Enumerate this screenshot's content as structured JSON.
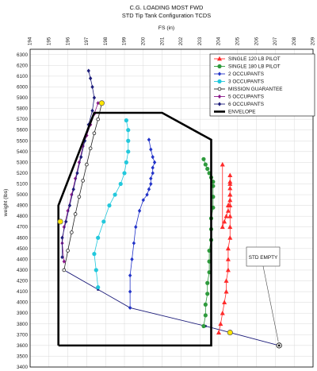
{
  "chart_data": {
    "type": "line",
    "title": "C.G. LOADING MOST FWD",
    "subtitle": "STD Tip Tank Configuration TCDS",
    "xlabel": "FS (in)",
    "ylabel": "weight (lbs)",
    "xlim": [
      194,
      209
    ],
    "ylim": [
      3400,
      6350
    ],
    "x_ticks": [
      194,
      195,
      196,
      197,
      198,
      199,
      200,
      201,
      202,
      203,
      204,
      205,
      206,
      207,
      208,
      209
    ],
    "y_ticks": [
      3400,
      3500,
      3600,
      3700,
      3800,
      3900,
      4000,
      4100,
      4200,
      4300,
      4400,
      4500,
      4600,
      4700,
      4800,
      4900,
      5000,
      5100,
      5200,
      5300,
      5400,
      5500,
      5600,
      5700,
      5800,
      5900,
      6000,
      6100,
      6200,
      6300
    ],
    "x_axis_position": "top",
    "grid": true,
    "legend_position": "top-right",
    "series": [
      {
        "name": "SINGLE 120 LB PILOT",
        "color": "#ff2a2a",
        "marker": "triangle",
        "x": [
          204.0,
          204.1,
          204.2,
          204.3,
          204.4,
          204.4,
          204.5,
          204.5,
          204.5,
          204.6,
          204.6,
          204.6,
          204.6,
          204.6,
          204.6,
          204.6,
          204.6,
          204.6,
          204.6,
          204.6,
          204.5,
          204.5,
          204.4,
          204.3,
          204.2,
          204.2
        ],
        "y": [
          3720,
          3800,
          3900,
          4000,
          4100,
          4200,
          4300,
          4400,
          4500,
          4600,
          4700,
          4800,
          4900,
          5000,
          5100,
          5180,
          5120,
          5060,
          5000,
          4950,
          4900,
          4850,
          4800,
          4750,
          4700,
          5280
        ]
      },
      {
        "name": "SINGLE 180 LB PILOT",
        "color": "#2e9a3c",
        "marker": "circle",
        "x": [
          203.2,
          203.3,
          203.3,
          203.4,
          203.4,
          203.5,
          203.5,
          203.5,
          203.6,
          203.6,
          203.6,
          203.7,
          203.7,
          203.7,
          203.7,
          203.6,
          203.5,
          203.4,
          203.3,
          203.2
        ],
        "y": [
          3780,
          3880,
          3980,
          4080,
          4180,
          4280,
          4380,
          4480,
          4580,
          4680,
          4780,
          4880,
          4980,
          5080,
          5120,
          5160,
          5200,
          5240,
          5280,
          5330
        ]
      },
      {
        "name": "2 OCCUPANTS",
        "color": "#2233c8",
        "marker": "diamond",
        "x": [
          199.3,
          199.3,
          199.3,
          199.4,
          199.5,
          199.6,
          199.8,
          200.0,
          200.2,
          200.3,
          200.4,
          200.4,
          200.5,
          200.5,
          200.6,
          200.5,
          200.4,
          200.3
        ],
        "y": [
          3950,
          4100,
          4250,
          4400,
          4550,
          4700,
          4850,
          4950,
          5000,
          5050,
          5100,
          5150,
          5200,
          5250,
          5300,
          5350,
          5420,
          5510
        ]
      },
      {
        "name": "3 OCCUPANTS",
        "color": "#22c8dc",
        "marker": "circle",
        "x": [
          197.6,
          197.5,
          197.4,
          197.6,
          197.9,
          198.2,
          198.5,
          198.8,
          199.0,
          199.1,
          199.2,
          199.2,
          199.2,
          199.1
        ],
        "y": [
          4140,
          4300,
          4450,
          4600,
          4750,
          4900,
          5000,
          5100,
          5200,
          5300,
          5400,
          5500,
          5600,
          5690
        ]
      },
      {
        "name": "MISSION GUARANTEE",
        "color": "#222222",
        "marker": "open-circle",
        "x": [
          195.8,
          196.0,
          196.2,
          196.4,
          196.6,
          196.8,
          197.0,
          197.2,
          197.4,
          197.6,
          197.8
        ],
        "y": [
          4300,
          4480,
          4650,
          4820,
          4980,
          5130,
          5280,
          5430,
          5570,
          5700,
          5850
        ]
      },
      {
        "name": "5 OCCUPANTS",
        "color": "#8b1a8b",
        "marker": "diamond",
        "x": [
          195.8,
          195.7,
          195.8,
          196.0,
          196.2,
          196.4,
          196.6,
          196.8,
          197.0,
          197.2,
          197.4,
          197.6
        ],
        "y": [
          4380,
          4550,
          4700,
          4850,
          5000,
          5150,
          5300,
          5450,
          5550,
          5650,
          5750,
          5850
        ]
      },
      {
        "name": "6 OCCUPANTS",
        "color": "#1c1c7a",
        "marker": "diamond",
        "x": [
          195.7,
          195.7,
          195.9,
          196.1,
          196.3,
          196.5,
          196.7,
          196.9,
          197.1,
          197.3,
          197.4,
          197.3,
          197.2,
          197.1
        ],
        "y": [
          4420,
          4600,
          4750,
          4900,
          5050,
          5200,
          5350,
          5500,
          5650,
          5780,
          5900,
          6000,
          6080,
          6150
        ]
      },
      {
        "name": "ENVELOPE",
        "color": "#000000",
        "marker": "none",
        "line_width": 2.6,
        "x": [
          195.5,
          195.5,
          197.4,
          201.0,
          203.6,
          203.6,
          195.5
        ],
        "y": [
          3600,
          4900,
          5760,
          5760,
          5510,
          3600,
          3600
        ]
      }
    ],
    "connector_line": {
      "color": "#1c1c7a",
      "x": [
        195.9,
        197.6,
        199.3,
        203.3,
        204.6,
        207.2
      ],
      "y": [
        4290,
        4120,
        3950,
        3780,
        3720,
        3600
      ]
    },
    "highlight_points": [
      {
        "x": 195.6,
        "y": 4750
      },
      {
        "x": 197.8,
        "y": 5850
      },
      {
        "x": 204.6,
        "y": 3720
      }
    ],
    "annotation": {
      "text": "STD EMPTY",
      "x": 207.2,
      "y": 3600
    }
  }
}
